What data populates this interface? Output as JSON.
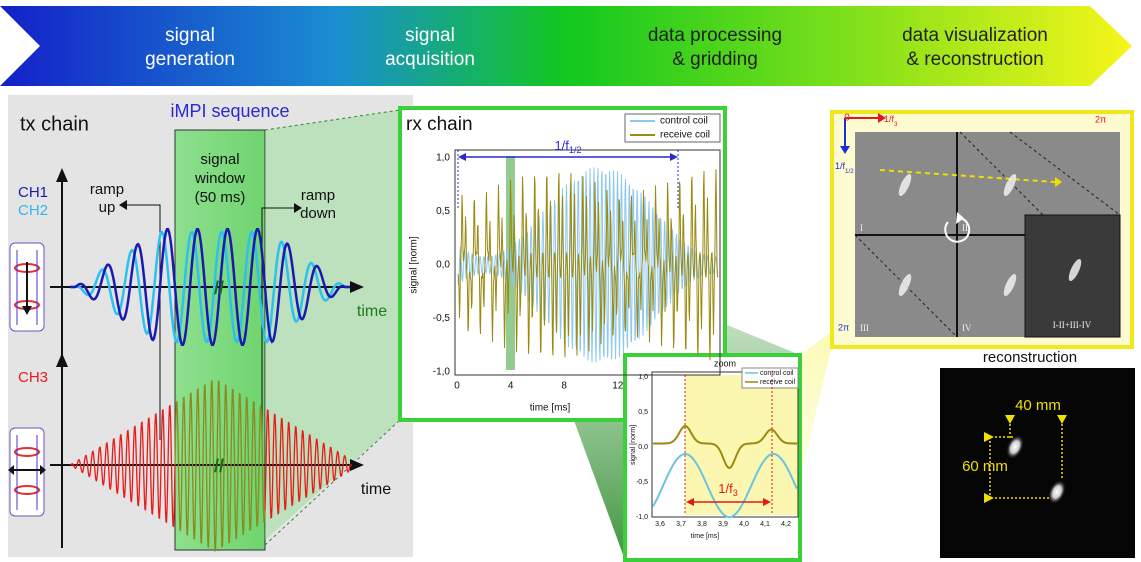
{
  "banner": {
    "stages": [
      [
        "signal",
        "generation"
      ],
      [
        "signal",
        "acquisition"
      ],
      [
        "data processing",
        "& gridding"
      ],
      [
        "data visualization",
        "& reconstruction"
      ]
    ]
  },
  "tx_chain": {
    "title": "tx chain",
    "sequence": "iMPI sequence",
    "channels": [
      "CH1",
      "CH2",
      "CH3"
    ],
    "ramp_up": [
      "ramp",
      "up"
    ],
    "window": [
      "signal",
      "window",
      "(50 ms)"
    ],
    "ramp_down": [
      "ramp",
      "down"
    ],
    "time_labels": [
      "time",
      "time"
    ],
    "breaks": [
      "//",
      "//"
    ]
  },
  "rx_chain": {
    "title": "rx chain",
    "legend": [
      "control coil",
      "receive coil"
    ],
    "y_label": "signal [norm]",
    "x_label": "time [ms]",
    "yticks": [
      "1,0",
      "0,5",
      "0,0",
      "-0,5",
      "-1,0"
    ],
    "xticks": [
      "0",
      "4",
      "8",
      "12"
    ],
    "period": {
      "base": "1/f",
      "sub": "1/2"
    }
  },
  "zoom": {
    "title": "zoom",
    "legend": [
      "control coil",
      "receive coil"
    ],
    "y_label": "signal [norm]",
    "x_label": "time [ms]",
    "yticks": [
      "1,0",
      "0,5",
      "0,0",
      "-0,5",
      "-1,0"
    ],
    "xticks": [
      "3,6",
      "3,7",
      "3,8",
      "3,9",
      "4,0",
      "4,1",
      "4,2"
    ],
    "period": {
      "base": "1/f",
      "sub": "3"
    }
  },
  "visualization": {
    "origin": "0",
    "top_axis": {
      "base": "1/f",
      "sub": "3"
    },
    "top_end": "2π",
    "left_axis": {
      "base": "1/f",
      "sub": "1/2"
    },
    "left_end": "2π",
    "quadrants": [
      "I",
      "II",
      "III",
      "IV"
    ],
    "combined": "I-II+III-IV"
  },
  "reconstruction": {
    "title": "reconstruction",
    "horizontal": "40 mm",
    "vertical": "60 mm"
  }
}
